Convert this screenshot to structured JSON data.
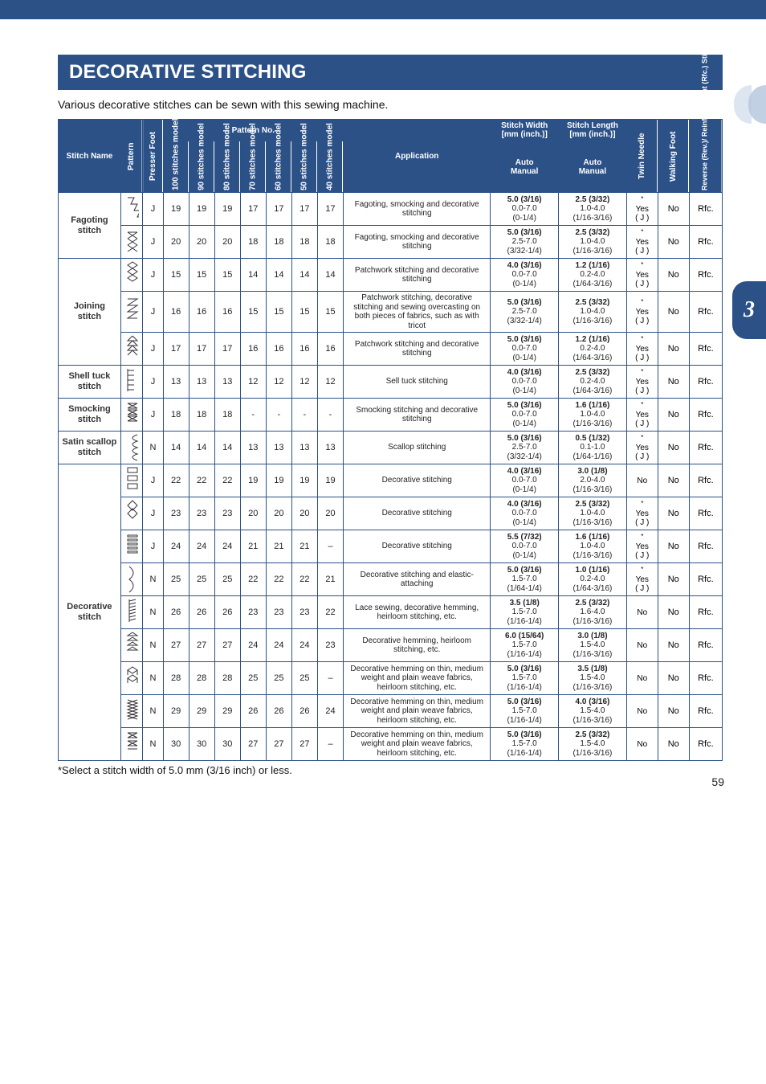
{
  "page": {
    "title": "DECORATIVE STITCHING",
    "intro": "Various decorative stitches can be sewn with this sewing machine.",
    "footnote": "*Select a stitch width of 5.0 mm (3/16 inch) or less.",
    "page_number": "59",
    "chapter_tab": "3"
  },
  "headers": {
    "stitch_name": "Stitch Name",
    "pattern": "Pattern",
    "presser_foot": "Presser Foot",
    "pattern_no_group": "Pattern No.",
    "models": {
      "m100": "100 stitches model",
      "m90": "90 stitches model",
      "m80": "80 stitches model",
      "m70": "70 stitches model",
      "m60": "60 stitches model",
      "m50": "50 stitches model",
      "m40": "40 stitches model"
    },
    "application": "Application",
    "stitch_width": "Stitch Width [mm (inch.)]",
    "stitch_length": "Stitch Length [mm (inch.)]",
    "auto": "Auto",
    "manual": "Manual",
    "twin_needle": "Twin Needle",
    "walking_foot": "Walking Foot",
    "reverse": "Reverse (Rev.)/ Reinforcement (Rfc.) Stitching"
  },
  "rows": [
    {
      "name": "Fagoting stitch",
      "name_rowspan": 2,
      "foot": "J",
      "m100": "19",
      "m90": "19",
      "m80": "19",
      "m70": "17",
      "m60": "17",
      "m50": "17",
      "m40": "17",
      "app": "Fagoting, smocking and decorative stitching",
      "sw_auto": "5.0 (3/16)",
      "sw_manual": "0.0-7.0",
      "sw_manual2": "(0-1/4)",
      "sl_auto": "2.5 (3/32)",
      "sl_manual": "1.0-4.0",
      "sl_manual2": "(1/16-3/16)",
      "twin": "Yes*",
      "wf": "No",
      "rv": "Rfc."
    },
    {
      "foot": "J",
      "m100": "20",
      "m90": "20",
      "m80": "20",
      "m70": "18",
      "m60": "18",
      "m50": "18",
      "m40": "18",
      "app": "Fagoting, smocking and decorative stitching",
      "sw_auto": "5.0 (3/16)",
      "sw_manual": "2.5-7.0",
      "sw_manual2": "(3/32-1/4)",
      "sl_auto": "2.5 (3/32)",
      "sl_manual": "1.0-4.0",
      "sl_manual2": "(1/16-3/16)",
      "twin": "Yes*",
      "wf": "No",
      "rv": "Rfc."
    },
    {
      "name": "Joining stitch",
      "name_rowspan": 3,
      "foot": "J",
      "m100": "15",
      "m90": "15",
      "m80": "15",
      "m70": "14",
      "m60": "14",
      "m50": "14",
      "m40": "14",
      "app": "Patchwork stitching and decorative stitching",
      "sw_auto": "4.0 (3/16)",
      "sw_manual": "0.0-7.0",
      "sw_manual2": "(0-1/4)",
      "sl_auto": "1.2 (1/16)",
      "sl_manual": "0.2-4.0",
      "sl_manual2": "(1/64-3/16)",
      "twin": "Yes*",
      "wf": "No",
      "rv": "Rfc."
    },
    {
      "foot": "J",
      "m100": "16",
      "m90": "16",
      "m80": "16",
      "m70": "15",
      "m60": "15",
      "m50": "15",
      "m40": "15",
      "app": "Patchwork stitching, decorative stitching and sewing overcasting on both pieces of fabrics, such as with tricot",
      "sw_auto": "5.0 (3/16)",
      "sw_manual": "2.5-7.0",
      "sw_manual2": "(3/32-1/4)",
      "sl_auto": "2.5 (3/32)",
      "sl_manual": "1.0-4.0",
      "sl_manual2": "(1/16-3/16)",
      "twin": "Yes*",
      "wf": "No",
      "rv": "Rfc."
    },
    {
      "foot": "J",
      "m100": "17",
      "m90": "17",
      "m80": "17",
      "m70": "16",
      "m60": "16",
      "m50": "16",
      "m40": "16",
      "app": "Patchwork stitching and decorative stitching",
      "sw_auto": "5.0 (3/16)",
      "sw_manual": "0.0-7.0",
      "sw_manual2": "(0-1/4)",
      "sl_auto": "1.2 (1/16)",
      "sl_manual": "0.2-4.0",
      "sl_manual2": "(1/64-3/16)",
      "twin": "Yes*",
      "wf": "No",
      "rv": "Rfc."
    },
    {
      "name": "Shell tuck stitch",
      "name_rowspan": 1,
      "foot": "J",
      "m100": "13",
      "m90": "13",
      "m80": "13",
      "m70": "12",
      "m60": "12",
      "m50": "12",
      "m40": "12",
      "app": "Sell tuck stitching",
      "sw_auto": "4.0 (3/16)",
      "sw_manual": "0.0-7.0",
      "sw_manual2": "(0-1/4)",
      "sl_auto": "2.5 (3/32)",
      "sl_manual": "0.2-4.0",
      "sl_manual2": "(1/64-3/16)",
      "twin": "Yes*",
      "wf": "No",
      "rv": "Rfc."
    },
    {
      "name": "Smocking stitch",
      "name_rowspan": 1,
      "foot": "J",
      "m100": "18",
      "m90": "18",
      "m80": "18",
      "m70": "-",
      "m60": "-",
      "m50": "-",
      "m40": "-",
      "app": "Smocking stitching and decorative stitching",
      "sw_auto": "5.0 (3/16)",
      "sw_manual": "0.0-7.0",
      "sw_manual2": "(0-1/4)",
      "sl_auto": "1.6 (1/16)",
      "sl_manual": "1.0-4.0",
      "sl_manual2": "(1/16-3/16)",
      "twin": "Yes*",
      "wf": "No",
      "rv": "Rfc."
    },
    {
      "name": "Satin scallop stitch",
      "name_rowspan": 1,
      "foot": "N",
      "m100": "14",
      "m90": "14",
      "m80": "14",
      "m70": "13",
      "m60": "13",
      "m50": "13",
      "m40": "13",
      "app": "Scallop stitching",
      "sw_auto": "5.0 (3/16)",
      "sw_manual": "2.5-7.0",
      "sw_manual2": "(3/32-1/4)",
      "sl_auto": "0.5 (1/32)",
      "sl_manual": "0.1-1.0",
      "sl_manual2": "(1/64-1/16)",
      "twin": "Yes*",
      "wf": "No",
      "rv": "Rfc."
    },
    {
      "name": "Decorative stitch",
      "name_rowspan": 9,
      "foot": "J",
      "m100": "22",
      "m90": "22",
      "m80": "22",
      "m70": "19",
      "m60": "19",
      "m50": "19",
      "m40": "19",
      "app": "Decorative stitching",
      "sw_auto": "4.0 (3/16)",
      "sw_manual": "0.0-7.0",
      "sw_manual2": "(0-1/4)",
      "sl_auto": "3.0 (1/8)",
      "sl_manual": "2.0-4.0",
      "sl_manual2": "(1/16-3/16)",
      "twin": "No",
      "wf": "No",
      "rv": "Rfc."
    },
    {
      "foot": "J",
      "m100": "23",
      "m90": "23",
      "m80": "23",
      "m70": "20",
      "m60": "20",
      "m50": "20",
      "m40": "20",
      "app": "Decorative stitching",
      "sw_auto": "4.0 (3/16)",
      "sw_manual": "0.0-7.0",
      "sw_manual2": "(0-1/4)",
      "sl_auto": "2.5 (3/32)",
      "sl_manual": "1.0-4.0",
      "sl_manual2": "(1/16-3/16)",
      "twin": "Yes*",
      "wf": "No",
      "rv": "Rfc."
    },
    {
      "foot": "J",
      "m100": "24",
      "m90": "24",
      "m80": "24",
      "m70": "21",
      "m60": "21",
      "m50": "21",
      "m40": "–",
      "app": "Decorative stitching",
      "sw_auto": "5.5 (7/32)",
      "sw_manual": "0.0-7.0",
      "sw_manual2": "(0-1/4)",
      "sl_auto": "1.6 (1/16)",
      "sl_manual": "1.0-4.0",
      "sl_manual2": "(1/16-3/16)",
      "twin": "Yes*",
      "wf": "No",
      "rv": "Rfc."
    },
    {
      "foot": "N",
      "m100": "25",
      "m90": "25",
      "m80": "25",
      "m70": "22",
      "m60": "22",
      "m50": "22",
      "m40": "21",
      "app": "Decorative stitching and elastic-attaching",
      "sw_auto": "5.0 (3/16)",
      "sw_manual": "1.5-7.0",
      "sw_manual2": "(1/64-1/4)",
      "sl_auto": "1.0 (1/16)",
      "sl_manual": "0.2-4.0",
      "sl_manual2": "(1/64-3/16)",
      "twin": "Yes*",
      "wf": "No",
      "rv": "Rfc."
    },
    {
      "foot": "N",
      "m100": "26",
      "m90": "26",
      "m80": "26",
      "m70": "23",
      "m60": "23",
      "m50": "23",
      "m40": "22",
      "app": "Lace sewing, decorative hemming, heirloom stitching, etc.",
      "sw_auto": "3.5 (1/8)",
      "sw_manual": "1.5-7.0",
      "sw_manual2": "(1/16-1/4)",
      "sl_auto": "2.5 (3/32)",
      "sl_manual": "1.6-4.0",
      "sl_manual2": "(1/16-3/16)",
      "twin": "No",
      "wf": "No",
      "rv": "Rfc."
    },
    {
      "foot": "N",
      "m100": "27",
      "m90": "27",
      "m80": "27",
      "m70": "24",
      "m60": "24",
      "m50": "24",
      "m40": "23",
      "app": "Decorative hemming, heirloom stitching, etc.",
      "sw_auto": "6.0 (15/64)",
      "sw_manual": "1.5-7.0",
      "sw_manual2": "(1/16-1/4)",
      "sl_auto": "3.0 (1/8)",
      "sl_manual": "1.5-4.0",
      "sl_manual2": "(1/16-3/16)",
      "twin": "No",
      "wf": "No",
      "rv": "Rfc."
    },
    {
      "foot": "N",
      "m100": "28",
      "m90": "28",
      "m80": "28",
      "m70": "25",
      "m60": "25",
      "m50": "25",
      "m40": "–",
      "app": "Decorative hemming on thin, medium weight and plain weave fabrics, heirloom stitching, etc.",
      "sw_auto": "5.0 (3/16)",
      "sw_manual": "1.5-7.0",
      "sw_manual2": "(1/16-1/4)",
      "sl_auto": "3.5 (1/8)",
      "sl_manual": "1.5-4.0",
      "sl_manual2": "(1/16-3/16)",
      "twin": "No",
      "wf": "No",
      "rv": "Rfc."
    },
    {
      "foot": "N",
      "m100": "29",
      "m90": "29",
      "m80": "29",
      "m70": "26",
      "m60": "26",
      "m50": "26",
      "m40": "24",
      "app": "Decorative hemming on thin, medium weight and plain weave fabrics, heirloom stitching, etc.",
      "sw_auto": "5.0 (3/16)",
      "sw_manual": "1.5-7.0",
      "sw_manual2": "(1/16-1/4)",
      "sl_auto": "4.0 (3/16)",
      "sl_manual": "1.5-4.0",
      "sl_manual2": "(1/16-3/16)",
      "twin": "No",
      "wf": "No",
      "rv": "Rfc."
    },
    {
      "foot": "N",
      "m100": "30",
      "m90": "30",
      "m80": "30",
      "m70": "27",
      "m60": "27",
      "m50": "27",
      "m40": "–",
      "app": "Decorative hemming on thin, medium weight and plain weave fabrics, heirloom stitching, etc.",
      "sw_auto": "5.0 (3/16)",
      "sw_manual": "1.5-7.0",
      "sw_manual2": "(1/16-1/4)",
      "sl_auto": "2.5 (3/32)",
      "sl_manual": "1.5-4.0",
      "sl_manual2": "(1/16-3/16)",
      "twin": "No",
      "wf": "No",
      "rv": "Rfc."
    }
  ],
  "colors": {
    "brand": "#2b5187",
    "text": "#222222",
    "border": "#2b5187",
    "bump_light": "#d7e1ee",
    "bump_dark": "#b7c8df"
  },
  "patterns": [
    "M4 4 L12 4 L8 12 L16 12 L12 20 L20 20 L16 28 L24 28",
    "M4 6 L16 6 M4 6 L16 14 M4 14 L16 6 M4 14 L16 22 M4 22 L16 14 M4 22 L16 30 M4 30 L16 22",
    "M10 2 L4 6 L10 10 L16 6 Z M10 10 L4 14 L10 18 L16 14 Z M10 18 L4 22 L10 26 L16 22 Z",
    "M4 2 L16 2 L4 10 L16 10 L4 18 L16 18 L4 26 L16 26",
    "M10 2 L4 8 L10 8 L4 14 L10 14 L4 20 L10 20 L4 26 M10 2 L16 8 L10 8 L16 14 L10 14 L16 20 L10 20 L16 26",
    "M4 2 L4 30 M4 4 L12 4 M4 10 L12 10 M4 16 L12 16 M4 22 L12 22 M4 28 L12 28",
    "M4 4 L16 4 M4 4 L16 10 M16 4 L4 10 M4 10 L16 10 M4 12 L16 12 M4 12 L16 18 M16 12 L4 18 M4 18 L16 18 M4 20 L16 20 M4 20 L16 26 M16 20 L4 26 M4 26 L16 26",
    "M16 2 Q4 6 16 10 Q4 14 16 18 Q4 22 16 26 Q4 30 16 34",
    "M4 2 L16 2 L16 8 L4 8 Z M4 12 L16 12 L16 18 L4 18 Z M4 22 L16 22 L16 28 L4 28 Z",
    "M10 2 L4 8 L10 14 L16 8 Z M10 12 L4 18 L10 24 L16 18 Z",
    "M4 4 L16 4 L16 6 L4 6 Z M4 9 L16 9 L16 11 L4 11 Z M4 14 L16 14 L16 16 L4 16 Z M4 19 L16 19 L16 21 L4 21 Z M4 24 L16 24 L16 26 L4 26 Z",
    "M6 2 Q16 10 6 18 Q16 26 6 34",
    "M6 2 L6 30 M6 4 L14 2 M6 8 L14 6 M6 12 L14 10 M6 16 L14 14 M6 20 L14 18 M6 24 L14 22 M6 28 L14 26",
    "M10 2 L4 6 L16 6 Z M10 8 L4 12 L16 12 Z M10 14 L4 18 L16 18 Z M10 20 L4 24 L16 24 Z",
    "M10 4 L4 8 L10 12 L16 8 Z M4 8 L4 14 M16 8 L16 14 M10 14 L4 18 L10 22 L16 18 Z M4 18 L4 24 M16 18 L16 24",
    "M4 4 L16 8 L4 12 L16 16 L4 20 L16 24 L4 28 M16 4 L4 8 L16 12 L4 16 L16 20 L4 24 L16 28",
    "M4 4 L16 4 M4 4 L16 10 M16 4 L4 10 M4 10 L16 10 M4 14 L16 14 M4 14 L16 20 M16 14 L4 20 M4 20 L16 20 M4 24 L16 24"
  ]
}
